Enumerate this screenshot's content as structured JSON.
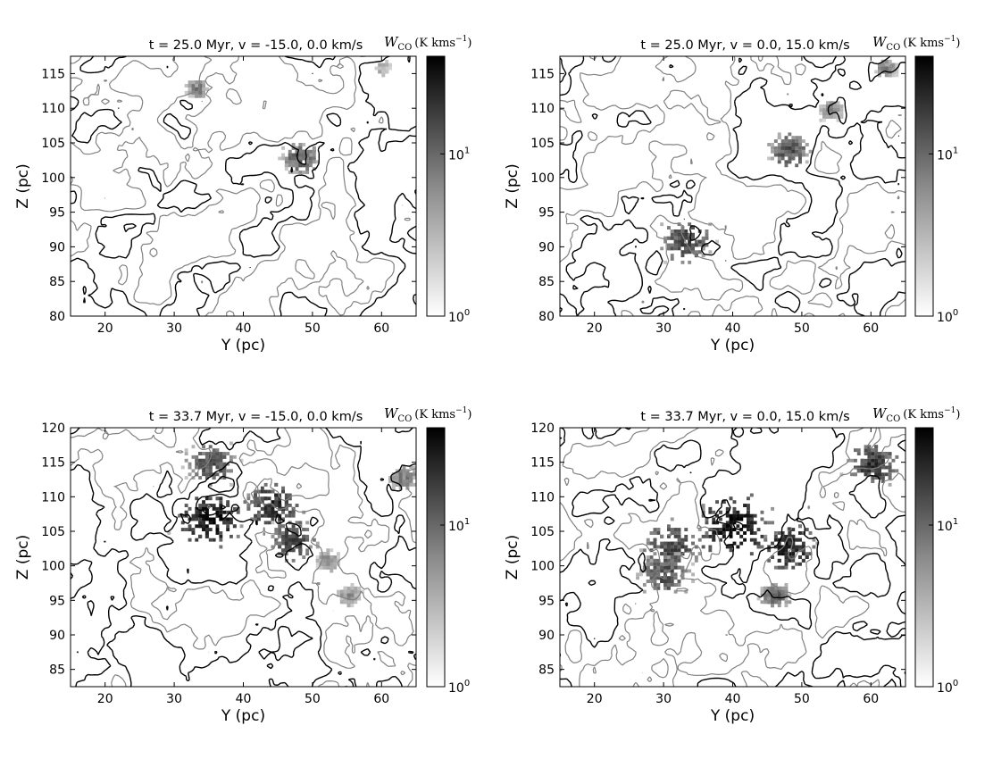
{
  "chart_data": [
    {
      "type": "heatmap",
      "title": "t = 25.0 Myr, v = -15.0, 0.0 km/s",
      "xlabel": "Y (pc)",
      "ylabel": "Z (pc)",
      "xlim": [
        15,
        65
      ],
      "ylim": [
        80,
        117.5
      ],
      "xticks": [
        "20",
        "30",
        "40",
        "50",
        "60"
      ],
      "yticks": [
        "80",
        "85",
        "90",
        "95",
        "100",
        "105",
        "110",
        "115"
      ],
      "colorbar": {
        "label_math": "W",
        "label_sub": "CO",
        "label_units": "(K kms",
        "label_exp": "−1",
        "label_close": ")",
        "scale": "log",
        "range": [
          1,
          40
        ],
        "ticks": [
          {
            "base": "10",
            "exp": "0",
            "value": 1
          },
          {
            "base": "10",
            "exp": "1",
            "value": 10
          }
        ]
      },
      "contours": {
        "black": "contour level 1",
        "gray": "contour level 2"
      },
      "grid": false,
      "seed": 11,
      "emission": [
        [
          48,
          103,
          1.5,
          12
        ],
        [
          33,
          113,
          0.8,
          8
        ],
        [
          60,
          116,
          0.6,
          4
        ]
      ]
    },
    {
      "type": "heatmap",
      "title": "t = 25.0 Myr, v = 0.0, 15.0 km/s",
      "xlabel": "Y (pc)",
      "ylabel": "Z (pc)",
      "xlim": [
        15,
        65
      ],
      "ylim": [
        80,
        117.5
      ],
      "xticks": [
        "20",
        "30",
        "40",
        "50",
        "60"
      ],
      "yticks": [
        "80",
        "85",
        "90",
        "95",
        "100",
        "105",
        "110",
        "115"
      ],
      "colorbar": {
        "label_math": "W",
        "label_sub": "CO",
        "label_units": "(K kms",
        "label_exp": "−1",
        "label_close": ")",
        "scale": "log",
        "range": [
          1,
          40
        ],
        "ticks": [
          {
            "base": "10",
            "exp": "0",
            "value": 1
          },
          {
            "base": "10",
            "exp": "1",
            "value": 10
          }
        ]
      },
      "contours": {
        "black": "contour level 1",
        "gray": "contour level 2"
      },
      "grid": false,
      "seed": 23,
      "emission": [
        [
          33,
          91,
          2.0,
          18
        ],
        [
          48,
          104,
          1.6,
          16
        ],
        [
          54,
          110,
          1.0,
          6
        ],
        [
          62,
          116,
          0.8,
          8
        ]
      ]
    },
    {
      "type": "heatmap",
      "title": "t = 33.7 Myr, v = -15.0, 0.0 km/s",
      "xlabel": "Y (pc)",
      "ylabel": "Z (pc)",
      "xlim": [
        15,
        65
      ],
      "ylim": [
        82.5,
        120
      ],
      "xticks": [
        "20",
        "30",
        "40",
        "50",
        "60"
      ],
      "yticks": [
        "85",
        "90",
        "95",
        "100",
        "105",
        "110",
        "115",
        "120"
      ],
      "colorbar": {
        "label_math": "W",
        "label_sub": "CO",
        "label_units": "(K kms",
        "label_exp": "−1",
        "label_close": ")",
        "scale": "log",
        "range": [
          1,
          40
        ],
        "ticks": [
          {
            "base": "10",
            "exp": "0",
            "value": 1
          },
          {
            "base": "10",
            "exp": "1",
            "value": 10
          }
        ]
      },
      "contours": {
        "black": "contour level 1",
        "gray": "contour level 2"
      },
      "grid": false,
      "seed": 37,
      "emission": [
        [
          35,
          107,
          2.5,
          40
        ],
        [
          44,
          109,
          2.2,
          28
        ],
        [
          47,
          104,
          1.8,
          22
        ],
        [
          35,
          115,
          2.0,
          16
        ],
        [
          63,
          113,
          1.2,
          8
        ],
        [
          55,
          96,
          1.0,
          6
        ],
        [
          52,
          101,
          1.0,
          6
        ]
      ]
    },
    {
      "type": "heatmap",
      "title": "t = 33.7 Myr, v = 0.0, 15.0 km/s",
      "xlabel": "Y (pc)",
      "ylabel": "Z (pc)",
      "xlim": [
        15,
        65
      ],
      "ylim": [
        82.5,
        120
      ],
      "xticks": [
        "20",
        "30",
        "40",
        "50",
        "60"
      ],
      "yticks": [
        "85",
        "90",
        "95",
        "100",
        "105",
        "110",
        "115",
        "120"
      ],
      "colorbar": {
        "label_math": "W",
        "label_sub": "CO",
        "label_units": "(K kms",
        "label_exp": "−1",
        "label_close": ")",
        "scale": "log",
        "range": [
          1,
          40
        ],
        "ticks": [
          {
            "base": "10",
            "exp": "0",
            "value": 1
          },
          {
            "base": "10",
            "exp": "1",
            "value": 10
          }
        ]
      },
      "contours": {
        "black": "contour level 1",
        "gray": "contour level 2"
      },
      "grid": false,
      "seed": 51,
      "emission": [
        [
          40,
          106,
          3.0,
          40
        ],
        [
          48,
          103,
          2.2,
          34
        ],
        [
          31,
          103,
          2.5,
          18
        ],
        [
          30,
          99,
          2.0,
          16
        ],
        [
          60,
          115,
          2.0,
          24
        ],
        [
          46,
          96,
          1.2,
          12
        ]
      ]
    }
  ],
  "colors": {
    "contour_black": "#000000",
    "contour_gray": "#808080",
    "background": "#ffffff"
  }
}
